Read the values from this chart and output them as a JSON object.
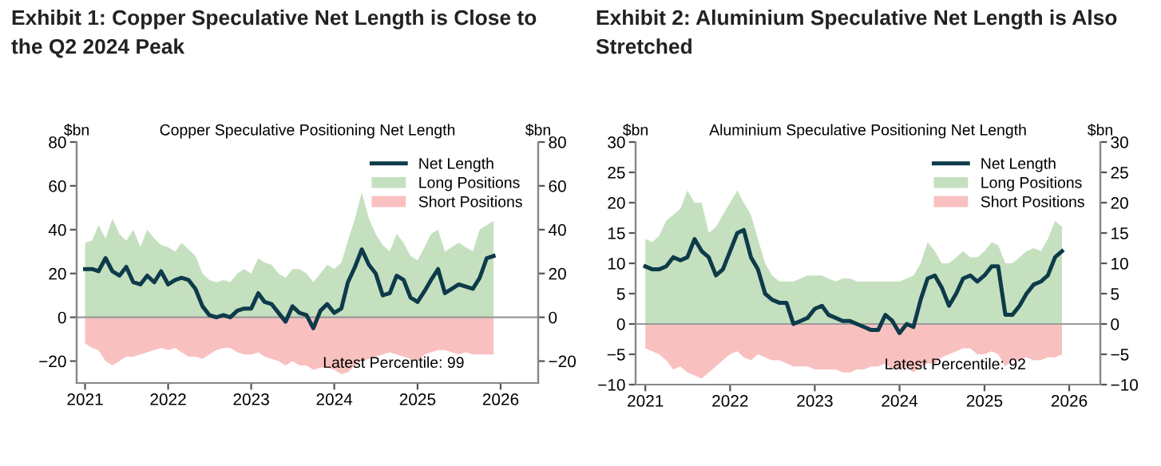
{
  "chart_data": [
    {
      "type": "area",
      "title": "Exhibit 1: Copper Speculative Net Length is Close to\nthe Q2 2024 Peak",
      "subtitle": "Copper Speculative Positioning Net Length",
      "ylabel": "$bn",
      "y2label": "$bn",
      "x": [
        "2021-01",
        "2021-02",
        "2021-03",
        "2021-04",
        "2021-05",
        "2021-06",
        "2021-07",
        "2021-08",
        "2021-09",
        "2021-10",
        "2021-11",
        "2021-12",
        "2022-01",
        "2022-02",
        "2022-03",
        "2022-04",
        "2022-05",
        "2022-06",
        "2022-07",
        "2022-08",
        "2022-09",
        "2022-10",
        "2022-11",
        "2022-12",
        "2023-01",
        "2023-02",
        "2023-03",
        "2023-04",
        "2023-05",
        "2023-06",
        "2023-07",
        "2023-08",
        "2023-09",
        "2023-10",
        "2023-11",
        "2023-12",
        "2024-01",
        "2024-02",
        "2024-03",
        "2024-04",
        "2024-05",
        "2024-06",
        "2024-07",
        "2024-08",
        "2024-09",
        "2024-10",
        "2024-11",
        "2024-12",
        "2025-01",
        "2025-02",
        "2025-03",
        "2025-04",
        "2025-05",
        "2025-06",
        "2025-07",
        "2025-08",
        "2025-09",
        "2025-10",
        "2025-11",
        "2025-12"
      ],
      "series": [
        {
          "name": "Net Length",
          "type": "line",
          "color": "#0d3b4a",
          "values": [
            22,
            22,
            21,
            27,
            21,
            19,
            23,
            16,
            15,
            19,
            16,
            21,
            15,
            17,
            18,
            17,
            13,
            5,
            1,
            0,
            1,
            0,
            3,
            4,
            4,
            11,
            7,
            6,
            2,
            -2,
            5,
            2,
            1,
            -5,
            3,
            6,
            2,
            4,
            16,
            23,
            31,
            24,
            20,
            10,
            11,
            19,
            17,
            9,
            7,
            12,
            17,
            22,
            11,
            13,
            15,
            14,
            13,
            18,
            27,
            28
          ]
        },
        {
          "name": "Long Positions",
          "color": "#c5e0bf",
          "values": [
            34,
            35,
            42,
            36,
            45,
            38,
            35,
            40,
            32,
            40,
            36,
            33,
            32,
            30,
            34,
            31,
            28,
            20,
            17,
            16,
            17,
            16,
            20,
            22,
            20,
            27,
            25,
            24,
            20,
            18,
            22,
            22,
            20,
            16,
            20,
            24,
            22,
            25,
            35,
            45,
            57,
            45,
            38,
            33,
            30,
            38,
            34,
            28,
            26,
            32,
            38,
            40,
            30,
            32,
            34,
            32,
            30,
            40,
            42,
            44
          ]
        },
        {
          "name": "Short Positions",
          "color": "#f9c0c0",
          "values": [
            -12,
            -14,
            -15,
            -20,
            -22,
            -20,
            -18,
            -18,
            -17,
            -16,
            -15,
            -14,
            -15,
            -14,
            -16,
            -18,
            -18,
            -19,
            -17,
            -15,
            -14,
            -14,
            -16,
            -17,
            -17,
            -16,
            -18,
            -19,
            -20,
            -22,
            -20,
            -22,
            -22,
            -24,
            -23,
            -23,
            -24,
            -26,
            -25,
            -22,
            -20,
            -19,
            -18,
            -17,
            -16,
            -17,
            -18,
            -19,
            -20,
            -17,
            -16,
            -15,
            -15,
            -16,
            -17,
            -16,
            -17,
            -17,
            -17,
            -17
          ]
        }
      ],
      "xlim": [
        "2020-11-25",
        "2026-06-15"
      ],
      "xticks": [
        "2021",
        "2022",
        "2023",
        "2024",
        "2025",
        "2026"
      ],
      "ylim": [
        -30,
        80
      ],
      "yticks": [
        -20,
        0,
        20,
        40,
        60,
        80
      ],
      "y2lim": [
        -30,
        80
      ],
      "y2ticks": [
        -20,
        0,
        20,
        40,
        60,
        80
      ],
      "ref_lines": [
        {
          "axis": "y",
          "value": 0,
          "color": "#999999"
        }
      ],
      "annotations": [
        "Latest Percentile: 99"
      ],
      "legend": "top right",
      "grid": false
    },
    {
      "type": "area",
      "title": "Exhibit 2: Aluminium Speculative Net Length is Also\nStretched",
      "subtitle": "Aluminium Speculative Positioning Net Length",
      "ylabel": "$bn",
      "y2label": "$bn",
      "x": [
        "2021-01",
        "2021-02",
        "2021-03",
        "2021-04",
        "2021-05",
        "2021-06",
        "2021-07",
        "2021-08",
        "2021-09",
        "2021-10",
        "2021-11",
        "2021-12",
        "2022-01",
        "2022-02",
        "2022-03",
        "2022-04",
        "2022-05",
        "2022-06",
        "2022-07",
        "2022-08",
        "2022-09",
        "2022-10",
        "2022-11",
        "2022-12",
        "2023-01",
        "2023-02",
        "2023-03",
        "2023-04",
        "2023-05",
        "2023-06",
        "2023-07",
        "2023-08",
        "2023-09",
        "2023-10",
        "2023-11",
        "2023-12",
        "2024-01",
        "2024-02",
        "2024-03",
        "2024-04",
        "2024-05",
        "2024-06",
        "2024-07",
        "2024-08",
        "2024-09",
        "2024-10",
        "2024-11",
        "2024-12",
        "2025-01",
        "2025-02",
        "2025-03",
        "2025-04",
        "2025-05",
        "2025-06",
        "2025-07",
        "2025-08",
        "2025-09",
        "2025-10",
        "2025-11",
        "2025-12"
      ],
      "series": [
        {
          "name": "Net Length",
          "type": "line",
          "color": "#0d3b4a",
          "values": [
            9.5,
            9,
            9,
            9.5,
            11,
            10.5,
            11,
            14,
            12,
            11,
            8,
            9,
            12,
            15,
            15.5,
            11,
            9,
            5,
            4,
            3.5,
            3.5,
            0,
            0.5,
            1,
            2.5,
            3,
            1.5,
            1,
            0.5,
            0.5,
            0,
            -0.5,
            -1,
            -1,
            1.5,
            0.5,
            -1.5,
            0,
            -0.5,
            4,
            7.5,
            8,
            6,
            3,
            5,
            7.5,
            8,
            7,
            8,
            9.5,
            9.5,
            1.5,
            1.5,
            3,
            5,
            6.5,
            7,
            8,
            11,
            12
          ]
        },
        {
          "name": "Long Positions",
          "color": "#c5e0bf",
          "values": [
            14,
            13.5,
            14.5,
            17,
            18,
            19,
            22,
            20,
            20,
            15,
            16,
            18,
            20,
            22,
            20,
            18,
            14,
            10,
            8,
            7,
            7,
            7,
            7.5,
            8,
            8,
            8,
            7.5,
            7,
            7.5,
            7.5,
            7,
            7,
            7,
            7,
            7,
            7,
            7,
            7.5,
            8,
            10,
            13.5,
            12,
            10,
            10,
            11,
            12,
            11,
            11,
            12,
            13.5,
            13,
            10,
            10,
            11,
            12,
            12.5,
            12,
            14,
            17,
            16
          ]
        },
        {
          "name": "Short Positions",
          "color": "#f9c0c0",
          "values": [
            -4,
            -4.5,
            -5,
            -6,
            -7.5,
            -7,
            -8,
            -8.5,
            -9,
            -8,
            -7,
            -6,
            -5,
            -4.5,
            -5.5,
            -6,
            -5,
            -5.5,
            -6,
            -6,
            -6.5,
            -7,
            -7,
            -7,
            -7.5,
            -7.5,
            -7.5,
            -7.5,
            -8,
            -8,
            -7.5,
            -7.5,
            -7,
            -7,
            -6.5,
            -7.5,
            -7.5,
            -7,
            -8,
            -7,
            -6.5,
            -6.5,
            -5.5,
            -5,
            -4.5,
            -4,
            -4,
            -5,
            -5,
            -4.5,
            -5,
            -7,
            -6,
            -6,
            -5.5,
            -6,
            -6,
            -5.5,
            -5.5,
            -5
          ]
        }
      ],
      "xlim": [
        "2020-11-20",
        "2026-05-15"
      ],
      "xticks": [
        "2021",
        "2022",
        "2023",
        "2024",
        "2025",
        "2026"
      ],
      "ylim": [
        -10,
        30
      ],
      "yticks": [
        -10,
        -5,
        0,
        5,
        10,
        15,
        20,
        25,
        30
      ],
      "y2lim": [
        -10,
        30
      ],
      "y2ticks": [
        -10,
        -5,
        0,
        5,
        10,
        15,
        20,
        25,
        30
      ],
      "ref_lines": [
        {
          "axis": "y",
          "value": 0,
          "color": "#999999"
        }
      ],
      "annotations": [
        "Latest Percentile: 92"
      ],
      "legend": "top right",
      "grid": false
    }
  ]
}
